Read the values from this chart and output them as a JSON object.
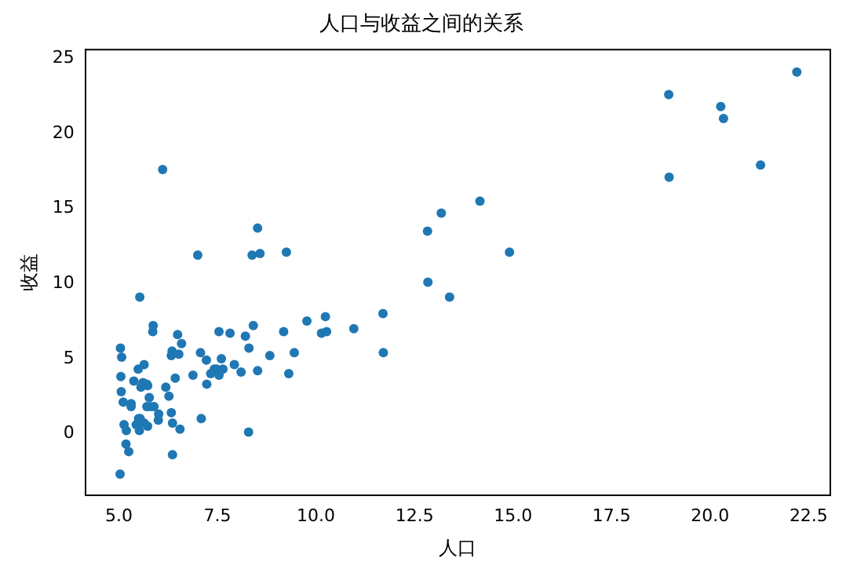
{
  "chart_data": {
    "type": "scatter",
    "title": "人口与收益之间的关系",
    "xlabel": "人口",
    "ylabel": "收益",
    "x": [
      6.11,
      5.53,
      8.52,
      7.0,
      5.86,
      8.38,
      7.48,
      8.58,
      6.49,
      5.05,
      5.71,
      14.16,
      5.73,
      8.41,
      5.64,
      5.38,
      5.13,
      6.43,
      7.07,
      6.19,
      20.27,
      5.49,
      6.33,
      5.56,
      18.95,
      12.83,
      10.96,
      13.18,
      22.2,
      5.25,
      6.59,
      9.25,
      5.89,
      8.21,
      7.93,
      8.1,
      5.61,
      12.84,
      6.35,
      6.88,
      11.71,
      5.77,
      7.82,
      7.09,
      5.07,
      5.8,
      11.7,
      5.54,
      7.54,
      5.31,
      7.42,
      7.6,
      6.33,
      6.36,
      6.27,
      5.64,
      9.31,
      9.45,
      8.83,
      5.18,
      21.28,
      14.91,
      18.96,
      7.22,
      8.3,
      10.24,
      5.5,
      20.34,
      10.14,
      7.33,
      6.01,
      7.23,
      5.03,
      6.55,
      7.54,
      5.04,
      10.27,
      5.11,
      5.73,
      5.19,
      6.36,
      9.77,
      6.52,
      8.52,
      9.18,
      6.0,
      5.52,
      5.06,
      5.71,
      7.64,
      5.87,
      5.31,
      8.29,
      13.39,
      5.44
    ],
    "series": [
      {
        "color": "#1f77b4",
        "values": [
          17.6,
          9.1,
          13.7,
          11.9,
          6.8,
          11.9,
          4.3,
          12.0,
          6.6,
          3.8,
          3.3,
          15.5,
          3.2,
          7.2,
          0.7,
          3.5,
          0.6,
          3.7,
          5.4,
          3.1,
          21.8,
          4.3,
          5.2,
          3.1,
          22.6,
          13.5,
          7.0,
          14.7,
          24.1,
          -1.2,
          6.0,
          12.1,
          1.8,
          6.5,
          4.6,
          4.1,
          3.4,
          10.1,
          5.5,
          3.9,
          5.4,
          2.4,
          6.7,
          1.0,
          5.1,
          1.8,
          8.0,
          1.0,
          6.8,
          1.8,
          4.3,
          5.0,
          1.4,
          -1.4,
          2.5,
          4.6,
          4.0,
          5.4,
          5.2,
          -0.7,
          17.9,
          12.1,
          17.1,
          4.9,
          5.7,
          7.8,
          1.0,
          21.0,
          6.7,
          4.0,
          1.3,
          3.3,
          -2.7,
          0.3,
          3.9,
          5.7,
          6.8,
          2.1,
          0.5,
          0.2,
          0.7,
          7.5,
          5.3,
          4.2,
          6.8,
          0.9,
          0.2,
          2.8,
          1.8,
          4.3,
          7.2,
          2.0,
          0.1,
          9.1,
          0.6
        ]
      }
    ],
    "xlim": [
      4.15,
      23.05
    ],
    "xticks": [
      {
        "value": 5,
        "label": "5.0"
      },
      {
        "value": 7.5,
        "label": "7.5"
      },
      {
        "value": 10,
        "label": "10.0"
      },
      {
        "value": 12.5,
        "label": "12.5"
      },
      {
        "value": 15,
        "label": "15.0"
      },
      {
        "value": 17.5,
        "label": "17.5"
      },
      {
        "value": 20,
        "label": "20.0"
      },
      {
        "value": 22.5,
        "label": "22.5"
      }
    ],
    "ylim": [
      -4.1,
      25.6
    ],
    "yticks": [
      0,
      5,
      10,
      15,
      20,
      25
    ],
    "grid": false,
    "legend": false,
    "marker": "circle"
  }
}
